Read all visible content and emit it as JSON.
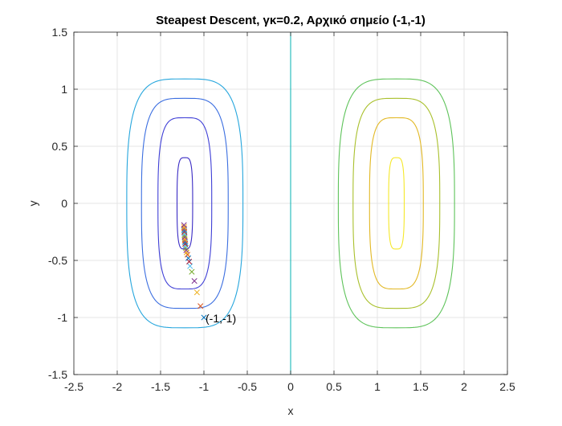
{
  "chart_data": {
    "type": "line",
    "title": "Steapest Descent, γκ=0.2, Αρχικό σημείο (-1,-1)",
    "xlabel": "x",
    "ylabel": "y",
    "xlim": [
      -2.5,
      2.5
    ],
    "ylim": [
      -1.5,
      1.5
    ],
    "xticks": [
      -2.5,
      -2,
      -1.5,
      -1,
      -0.5,
      0,
      0.5,
      1,
      1.5,
      2,
      2.5
    ],
    "xtick_labels": [
      "-2.5",
      "-2",
      "-1.5",
      "-1",
      "-0.5",
      "0",
      "0.5",
      "1",
      "1.5",
      "2",
      "2.5"
    ],
    "yticks": [
      -1.5,
      -1,
      -0.5,
      0,
      0.5,
      1,
      1.5
    ],
    "ytick_labels": [
      "-1.5",
      "-1",
      "-0.5",
      "0",
      "0.5",
      "1",
      "1.5"
    ],
    "grid": true,
    "contours": [
      {
        "cx": -1.22,
        "hw": 0.09,
        "hh": 0.4,
        "color": "#3a2bc4"
      },
      {
        "cx": -1.22,
        "hw": 0.31,
        "hh": 0.75,
        "color": "#3f3fd6"
      },
      {
        "cx": -1.22,
        "hw": 0.5,
        "hh": 0.92,
        "color": "#3b6ee0"
      },
      {
        "cx": -1.22,
        "hw": 0.67,
        "hh": 1.09,
        "color": "#26a6dd"
      },
      {
        "cx": 0.0,
        "hw": 0.0,
        "hh": 1.55,
        "color": "#18b8b8"
      },
      {
        "cx": 1.22,
        "hw": 0.67,
        "hh": 1.09,
        "color": "#5ec35a"
      },
      {
        "cx": 1.22,
        "hw": 0.5,
        "hh": 0.92,
        "color": "#a9c02c"
      },
      {
        "cx": 1.22,
        "hw": 0.31,
        "hh": 0.75,
        "color": "#e2b824"
      },
      {
        "cx": 1.22,
        "hw": 0.09,
        "hh": 0.4,
        "color": "#f5e829"
      }
    ],
    "iterates": {
      "x": [
        -1.0,
        -1.04,
        -1.08,
        -1.11,
        -1.14,
        -1.16,
        -1.17,
        -1.18,
        -1.19,
        -1.2,
        -1.205,
        -1.21,
        -1.213,
        -1.216,
        -1.218,
        -1.22,
        -1.222,
        -1.223,
        -1.224,
        -1.225,
        -1.226,
        -1.227,
        -1.228,
        -1.229,
        -1.23
      ],
      "y": [
        -1.0,
        -0.9,
        -0.78,
        -0.68,
        -0.6,
        -0.55,
        -0.51,
        -0.48,
        -0.45,
        -0.43,
        -0.41,
        -0.39,
        -0.37,
        -0.355,
        -0.34,
        -0.325,
        -0.31,
        -0.295,
        -0.28,
        -0.265,
        -0.25,
        -0.235,
        -0.22,
        -0.205,
        -0.19
      ],
      "marker": "x",
      "colors": [
        "#0072bd",
        "#d95319",
        "#edb120",
        "#7e2f8e",
        "#77ac30",
        "#4dbeee",
        "#a2142f"
      ]
    },
    "annotations": [
      {
        "text": "(-1,-1)",
        "x": -1.0,
        "y": -1.0
      }
    ]
  }
}
